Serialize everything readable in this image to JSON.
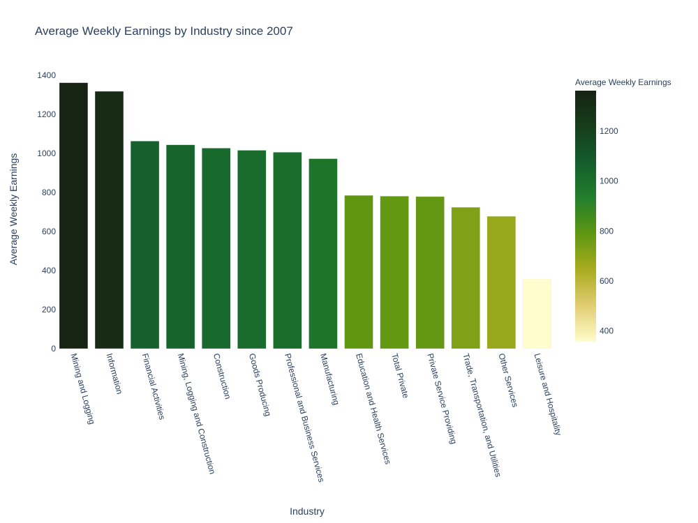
{
  "chart_data": {
    "type": "bar",
    "title": "Average Weekly Earnings by Industry since 2007",
    "xlabel": "Industry",
    "ylabel": "Average Weekly Earnings",
    "ylim": [
      0,
      1400
    ],
    "yticks": [
      0,
      200,
      400,
      600,
      800,
      1000,
      1200,
      1400
    ],
    "grid": false,
    "categories": [
      "Mining and Logging",
      "Information",
      "Financial Activities",
      "Mining, Logging and Construction",
      "Construction",
      "Goods Producing",
      "Professional and Business Services",
      "Manufacturing",
      "Education and Health Services",
      "Total Private",
      "Private Service Providing",
      "Trade, Transportation, and Utilities",
      "Other Services",
      "Leisure and Hospitality"
    ],
    "values": [
      1362,
      1318,
      1063,
      1044,
      1027,
      1016,
      1006,
      973,
      785,
      781,
      779,
      724,
      678,
      357
    ],
    "colorbar": {
      "title": "Average Weekly Earnings",
      "range": [
        357,
        1362
      ],
      "ticks": [
        400,
        600,
        800,
        1000,
        1200
      ],
      "colorscale": [
        "#fffdcd",
        "#e1cd73",
        "#aaac20",
        "#5f9711",
        "#237e2c",
        "#145d2c",
        "#163d1a",
        "#172313"
      ]
    }
  }
}
